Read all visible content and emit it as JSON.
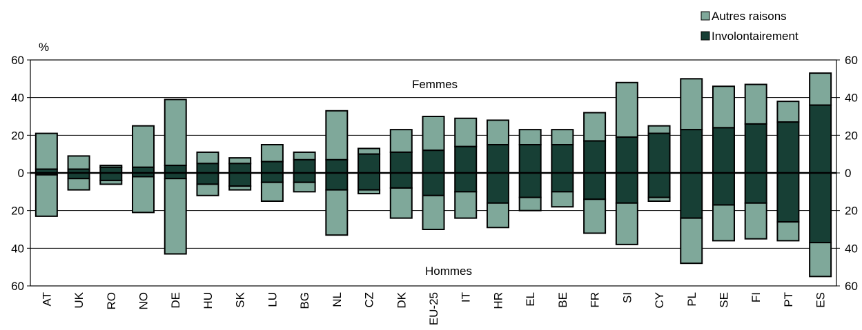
{
  "chart_data": {
    "type": "bar",
    "unit_label": "%",
    "ylim": [
      -60,
      60
    ],
    "y_ticks_left": [
      "60",
      "40",
      "20",
      "0",
      "20",
      "40",
      "60"
    ],
    "y_ticks_right": [
      "60",
      "40",
      "20",
      "0",
      "20",
      "40",
      "60"
    ],
    "grid": true,
    "legend_position": "top-right",
    "annotations": {
      "upper": "Femmes",
      "lower": "Hommes"
    },
    "series": [
      {
        "name": "Autres raisons",
        "color": "#7fa89a"
      },
      {
        "name": "Involontairement",
        "color": "#173f35"
      }
    ],
    "categories": [
      "AT",
      "UK",
      "RO",
      "NO",
      "DE",
      "HU",
      "SK",
      "LU",
      "BG",
      "NL",
      "CZ",
      "DK",
      "EU-25",
      "IT",
      "HR",
      "EL",
      "BE",
      "FR",
      "SI",
      "CY",
      "PL",
      "SE",
      "FI",
      "PT",
      "ES"
    ],
    "femmes": {
      "involontairement": [
        2,
        2,
        3,
        3,
        4,
        5,
        5,
        6,
        7,
        7,
        10,
        11,
        12,
        14,
        15,
        15,
        15,
        17,
        19,
        21,
        23,
        24,
        26,
        27,
        36
      ],
      "total": [
        21,
        9,
        4,
        25,
        39,
        11,
        8,
        15,
        11,
        33,
        13,
        23,
        30,
        29,
        28,
        23,
        23,
        32,
        48,
        25,
        50,
        46,
        47,
        38,
        53
      ]
    },
    "hommes": {
      "involontairement": [
        1,
        3,
        4,
        2,
        3,
        6,
        7,
        5,
        5,
        9,
        9,
        8,
        12,
        10,
        16,
        13,
        10,
        14,
        16,
        13,
        24,
        17,
        16,
        26,
        37
      ],
      "total": [
        23,
        9,
        6,
        21,
        43,
        12,
        9,
        15,
        10,
        33,
        11,
        24,
        30,
        24,
        29,
        20,
        18,
        32,
        38,
        15,
        48,
        36,
        35,
        36,
        55
      ]
    }
  }
}
